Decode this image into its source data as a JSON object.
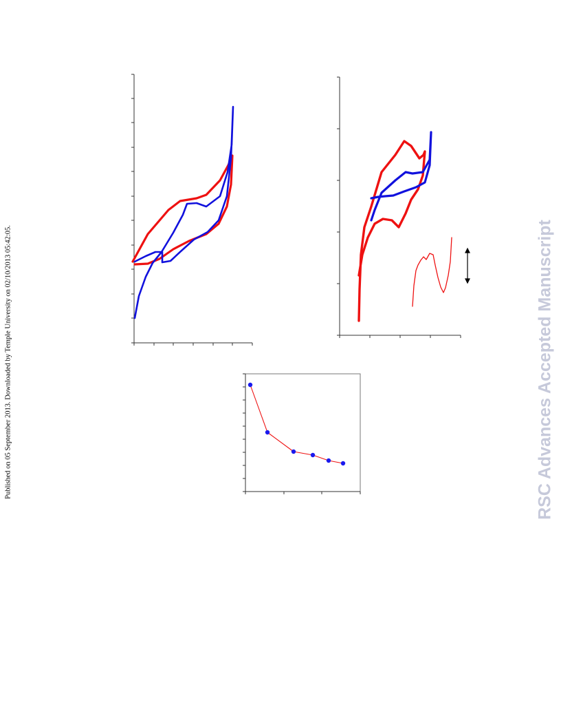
{
  "page": {
    "side_note": "Published on 05 September 2013. Downloaded by Temple University on 02/10/2013 05:42:05.",
    "watermark": "RSC Advances Accepted Manuscript"
  },
  "colors": {
    "red": "#ee1111",
    "blue": "#1111dd",
    "axis": "#333333",
    "marker": "#1a1aee"
  },
  "chart_data": [
    {
      "type": "line",
      "title": "",
      "xlabel": "",
      "ylabel": "",
      "grid": false,
      "series": [
        {
          "name": "",
          "color": "red",
          "values": [
            [
              193,
              380
            ],
            [
              215,
              340
            ],
            [
              245,
              305
            ],
            [
              262,
              292
            ],
            [
              286,
              288
            ],
            [
              300,
              283
            ],
            [
              320,
              262
            ],
            [
              332,
              240
            ],
            [
              338,
              226
            ],
            [
              336,
              268
            ],
            [
              330,
              300
            ],
            [
              318,
              325
            ],
            [
              300,
              340
            ],
            [
              275,
              350
            ],
            [
              252,
              362
            ],
            [
              232,
              376
            ],
            [
              215,
              383
            ],
            [
              196,
              384
            ]
          ]
        },
        {
          "name": "",
          "color": "blue",
          "values": [
            [
              196,
              462
            ],
            [
              202,
              430
            ],
            [
              212,
              402
            ],
            [
              222,
              382
            ],
            [
              235,
              366
            ],
            [
              252,
              338
            ],
            [
              266,
              312
            ],
            [
              272,
              296
            ],
            [
              286,
              295
            ],
            [
              300,
              300
            ],
            [
              320,
              285
            ],
            [
              331,
              250
            ],
            [
              337,
              210
            ],
            [
              339,
              155
            ],
            [
              336,
              230
            ],
            [
              330,
              285
            ],
            [
              318,
              320
            ],
            [
              302,
              337
            ],
            [
              282,
              348
            ],
            [
              263,
              365
            ],
            [
              248,
              379
            ],
            [
              236,
              381
            ],
            [
              236,
              366
            ],
            [
              226,
              366
            ],
            [
              212,
              372
            ],
            [
              196,
              380
            ]
          ]
        }
      ]
    },
    {
      "type": "line",
      "title": "",
      "xlabel": "",
      "ylabel": "",
      "grid": false,
      "series": [
        {
          "name": "",
          "color": "red",
          "values": [
            [
              522,
              466
            ],
            [
              523,
              420
            ],
            [
              525,
              370
            ],
            [
              530,
              330
            ],
            [
              540,
              300
            ],
            [
              555,
              250
            ],
            [
              575,
              225
            ],
            [
              588,
              205
            ],
            [
              598,
              212
            ],
            [
              610,
              230
            ],
            [
              616,
              225
            ],
            [
              618,
              220
            ],
            [
              615,
              255
            ],
            [
              608,
              275
            ],
            [
              598,
              290
            ],
            [
              590,
              310
            ],
            [
              580,
              330
            ],
            [
              570,
              320
            ],
            [
              557,
              318
            ],
            [
              545,
              325
            ],
            [
              535,
              345
            ],
            [
              527,
              370
            ],
            [
              522,
              400
            ]
          ]
        },
        {
          "name": "",
          "color": "blue",
          "values": [
            [
              540,
              320
            ],
            [
              545,
              305
            ],
            [
              555,
              280
            ],
            [
              575,
              262
            ],
            [
              590,
              250
            ],
            [
              600,
              252
            ],
            [
              615,
              250
            ],
            [
              625,
              232
            ],
            [
              627,
              192
            ],
            [
              625,
              240
            ],
            [
              618,
              265
            ],
            [
              605,
              272
            ],
            [
              588,
              278
            ],
            [
              572,
              284
            ],
            [
              560,
              285
            ],
            [
              550,
              286
            ],
            [
              540,
              288
            ]
          ]
        },
        {
          "name": "",
          "color": "red",
          "values": [
            [
              600,
              445
            ],
            [
              602,
              415
            ],
            [
              605,
              393
            ],
            [
              608,
              385
            ],
            [
              612,
              378
            ],
            [
              616,
              373
            ],
            [
              620,
              377
            ],
            [
              625,
              368
            ],
            [
              630,
              370
            ],
            [
              633,
              385
            ],
            [
              637,
              403
            ],
            [
              641,
              417
            ],
            [
              645,
              425
            ],
            [
              648,
              418
            ],
            [
              652,
              400
            ],
            [
              655,
              380
            ],
            [
              657,
              345
            ]
          ]
        }
      ]
    },
    {
      "type": "line",
      "title": "",
      "xlabel": "",
      "ylabel": "",
      "grid": false,
      "series": [
        {
          "name": "",
          "color": "red",
          "values": [
            [
              364,
              559
            ],
            [
              389,
              628
            ],
            [
              427,
              656
            ],
            [
              455,
              661
            ],
            [
              478,
              669
            ],
            [
              499,
              673
            ]
          ]
        }
      ]
    }
  ]
}
